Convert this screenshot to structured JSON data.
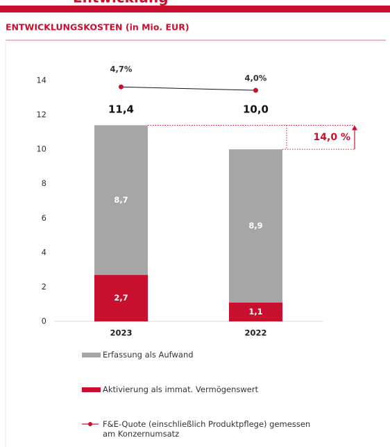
{
  "page_title": "Entwicklung",
  "chart_data": {
    "type": "bar",
    "stacked": true,
    "title": "ENTWICKLUNGSKOSTEN (in Mio. EUR)",
    "categories": [
      "2023",
      "2022"
    ],
    "series": [
      {
        "name": "Aktivierung als immat. Vermögenswert",
        "color": "#c8102e",
        "values": [
          2.7,
          1.1
        ],
        "value_labels": [
          "2,7",
          "1,1"
        ]
      },
      {
        "name": "Erfassung als Aufwand",
        "color": "#a6a6a6",
        "values": [
          8.7,
          8.9
        ],
        "value_labels": [
          "8,7",
          "8,9"
        ]
      },
      {
        "name": "F&E-Quote (einschließlich Produktpflege) gemessen am Konzernumsatz",
        "type": "line",
        "axis": "y2",
        "color": "#c8102e",
        "values": [
          4.7,
          4.0
        ],
        "value_labels": [
          "4,7%",
          "4,0%"
        ]
      }
    ],
    "total_labels": [
      "11,4",
      "10,0"
    ],
    "difference_label": "14,0 %",
    "ylim": [
      0,
      14
    ],
    "yticks": [
      0,
      2,
      4,
      6,
      8,
      10,
      12,
      14
    ],
    "y2lim": [
      -43,
      6
    ],
    "grid": false
  }
}
